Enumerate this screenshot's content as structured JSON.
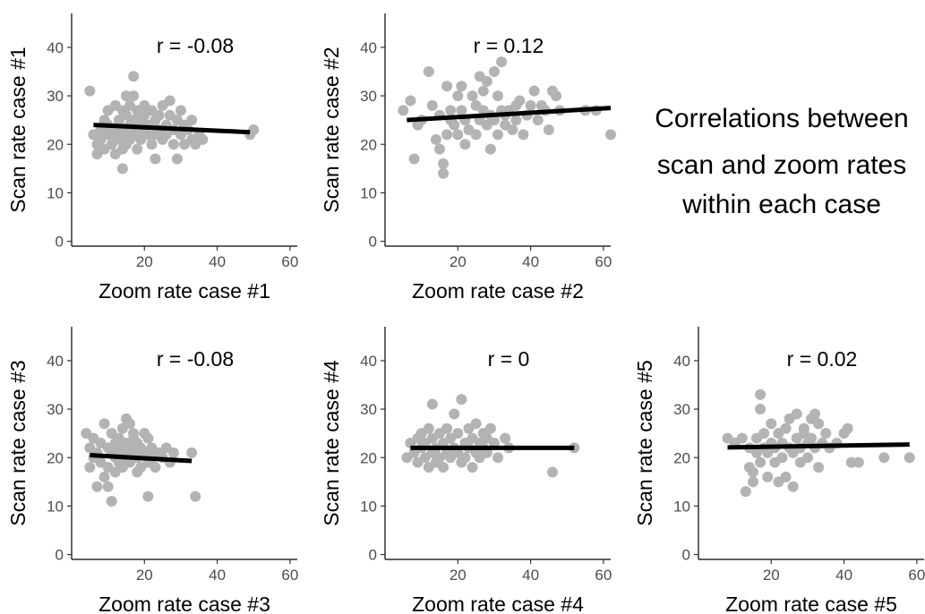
{
  "caption": [
    "Correlations between",
    "scan and zoom rates",
    "within each case"
  ],
  "axes": {
    "xlim": [
      0,
      62
    ],
    "ylim": [
      -1,
      47
    ],
    "xticks": [
      20,
      40,
      60
    ],
    "yticks": [
      0,
      10,
      20,
      30,
      40
    ]
  },
  "colors": {
    "points": "#b3b3b3",
    "fit": "#000000",
    "axis": "#000000"
  },
  "chart_data": [
    {
      "type": "scatter",
      "xlabel": "Zoom rate case #1",
      "ylabel": "Scan rate case #1",
      "annotation": "r = -0.08",
      "fit": {
        "x": [
          6,
          49
        ],
        "y": [
          24.0,
          22.5
        ]
      },
      "points": [
        [
          5,
          31
        ],
        [
          6,
          22
        ],
        [
          7,
          20
        ],
        [
          7,
          18
        ],
        [
          8,
          23
        ],
        [
          8,
          21
        ],
        [
          9,
          25
        ],
        [
          9,
          19
        ],
        [
          10,
          22
        ],
        [
          10,
          27
        ],
        [
          10,
          24
        ],
        [
          11,
          20
        ],
        [
          11,
          23
        ],
        [
          12,
          28
        ],
        [
          12,
          22
        ],
        [
          12,
          18
        ],
        [
          13,
          25
        ],
        [
          13,
          21
        ],
        [
          13,
          24
        ],
        [
          14,
          19
        ],
        [
          14,
          27
        ],
        [
          14,
          23
        ],
        [
          14,
          15
        ],
        [
          15,
          30
        ],
        [
          15,
          22
        ],
        [
          15,
          26
        ],
        [
          15,
          20
        ],
        [
          16,
          24
        ],
        [
          16,
          28
        ],
        [
          16,
          21
        ],
        [
          17,
          34
        ],
        [
          17,
          25
        ],
        [
          17,
          22
        ],
        [
          17,
          30
        ],
        [
          18,
          23
        ],
        [
          18,
          27
        ],
        [
          18,
          19
        ],
        [
          19,
          25
        ],
        [
          19,
          21
        ],
        [
          20,
          26
        ],
        [
          20,
          23
        ],
        [
          20,
          28
        ],
        [
          21,
          22
        ],
        [
          21,
          24
        ],
        [
          22,
          27
        ],
        [
          22,
          20
        ],
        [
          23,
          25
        ],
        [
          23,
          22
        ],
        [
          23,
          17
        ],
        [
          24,
          26
        ],
        [
          24,
          23
        ],
        [
          25,
          28
        ],
        [
          25,
          21
        ],
        [
          26,
          24
        ],
        [
          26,
          22
        ],
        [
          27,
          29
        ],
        [
          27,
          26
        ],
        [
          28,
          23
        ],
        [
          28,
          20
        ],
        [
          29,
          25
        ],
        [
          29,
          17
        ],
        [
          30,
          27
        ],
        [
          30,
          22
        ],
        [
          31,
          24
        ],
        [
          31,
          20
        ],
        [
          32,
          23
        ],
        [
          33,
          21
        ],
        [
          33,
          25
        ],
        [
          34,
          20
        ],
        [
          35,
          22
        ],
        [
          36,
          21
        ],
        [
          49,
          22
        ],
        [
          50,
          23
        ]
      ]
    },
    {
      "type": "scatter",
      "xlabel": "Zoom rate case #2",
      "ylabel": "Scan rate case #2",
      "annotation": "r = 0.12",
      "fit": {
        "x": [
          6,
          62
        ],
        "y": [
          25.0,
          27.5
        ]
      },
      "points": [
        [
          5,
          27
        ],
        [
          7,
          29
        ],
        [
          8,
          17
        ],
        [
          9,
          24
        ],
        [
          10,
          25
        ],
        [
          12,
          35
        ],
        [
          13,
          28
        ],
        [
          14,
          21
        ],
        [
          15,
          26
        ],
        [
          15,
          19
        ],
        [
          16,
          16
        ],
        [
          16,
          14
        ],
        [
          17,
          22
        ],
        [
          17,
          32
        ],
        [
          18,
          27
        ],
        [
          18,
          25
        ],
        [
          19,
          24
        ],
        [
          20,
          30
        ],
        [
          20,
          22
        ],
        [
          21,
          32
        ],
        [
          21,
          27
        ],
        [
          22,
          20
        ],
        [
          22,
          25
        ],
        [
          23,
          23
        ],
        [
          24,
          30
        ],
        [
          25,
          28
        ],
        [
          25,
          22
        ],
        [
          26,
          34
        ],
        [
          26,
          25
        ],
        [
          27,
          27
        ],
        [
          27,
          31
        ],
        [
          28,
          33
        ],
        [
          28,
          24
        ],
        [
          29,
          26
        ],
        [
          29,
          19
        ],
        [
          30,
          35
        ],
        [
          30,
          25
        ],
        [
          31,
          30
        ],
        [
          31,
          22
        ],
        [
          32,
          37
        ],
        [
          32,
          27
        ],
        [
          33,
          24
        ],
        [
          33,
          26
        ],
        [
          34,
          27
        ],
        [
          35,
          23
        ],
        [
          36,
          25
        ],
        [
          36,
          28
        ],
        [
          37,
          29
        ],
        [
          38,
          22
        ],
        [
          39,
          26
        ],
        [
          40,
          28
        ],
        [
          41,
          31
        ],
        [
          42,
          25
        ],
        [
          43,
          28
        ],
        [
          44,
          27
        ],
        [
          45,
          23
        ],
        [
          46,
          31
        ],
        [
          47,
          30
        ],
        [
          48,
          27
        ],
        [
          55,
          27
        ],
        [
          58,
          27
        ],
        [
          62,
          22
        ]
      ]
    },
    {
      "type": "scatter",
      "xlabel": "Zoom rate case #3",
      "ylabel": "Scan rate case #3",
      "annotation": "r = -0.08",
      "fit": {
        "x": [
          5,
          33
        ],
        "y": [
          20.5,
          19.3
        ]
      },
      "points": [
        [
          4,
          25
        ],
        [
          5,
          22
        ],
        [
          5,
          18
        ],
        [
          6,
          20
        ],
        [
          6,
          24
        ],
        [
          7,
          14
        ],
        [
          7,
          21
        ],
        [
          8,
          23
        ],
        [
          8,
          19
        ],
        [
          9,
          27
        ],
        [
          9,
          16
        ],
        [
          10,
          22
        ],
        [
          10,
          18
        ],
        [
          10,
          14
        ],
        [
          11,
          21
        ],
        [
          11,
          25
        ],
        [
          11,
          11
        ],
        [
          12,
          20
        ],
        [
          12,
          23
        ],
        [
          12,
          17
        ],
        [
          13,
          24
        ],
        [
          13,
          19
        ],
        [
          13,
          22
        ],
        [
          14,
          21
        ],
        [
          14,
          26
        ],
        [
          14,
          18
        ],
        [
          15,
          28
        ],
        [
          15,
          20
        ],
        [
          15,
          23
        ],
        [
          16,
          27
        ],
        [
          16,
          22
        ],
        [
          16,
          19
        ],
        [
          17,
          25
        ],
        [
          17,
          21
        ],
        [
          17,
          24
        ],
        [
          18,
          20
        ],
        [
          18,
          23
        ],
        [
          18,
          17
        ],
        [
          19,
          22
        ],
        [
          19,
          18
        ],
        [
          20,
          25
        ],
        [
          20,
          21
        ],
        [
          21,
          24
        ],
        [
          21,
          19
        ],
        [
          21,
          12
        ],
        [
          22,
          22
        ],
        [
          22,
          20
        ],
        [
          23,
          18
        ],
        [
          24,
          21
        ],
        [
          25,
          20
        ],
        [
          26,
          22
        ],
        [
          27,
          19
        ],
        [
          28,
          21
        ],
        [
          33,
          21
        ],
        [
          34,
          12
        ]
      ]
    },
    {
      "type": "scatter",
      "xlabel": "Zoom rate case #4",
      "ylabel": "Scan rate case #4",
      "annotation": "r = 0",
      "fit": {
        "x": [
          7,
          52
        ],
        "y": [
          22.0,
          22.0
        ]
      },
      "points": [
        [
          6,
          20
        ],
        [
          7,
          23
        ],
        [
          8,
          21
        ],
        [
          9,
          24
        ],
        [
          9,
          19
        ],
        [
          10,
          22
        ],
        [
          10,
          25
        ],
        [
          11,
          20
        ],
        [
          11,
          23
        ],
        [
          12,
          18
        ],
        [
          12,
          26
        ],
        [
          13,
          21
        ],
        [
          13,
          24
        ],
        [
          13,
          31
        ],
        [
          14,
          19
        ],
        [
          14,
          22
        ],
        [
          15,
          25
        ],
        [
          15,
          20
        ],
        [
          16,
          23
        ],
        [
          16,
          18
        ],
        [
          17,
          21
        ],
        [
          17,
          26
        ],
        [
          18,
          20
        ],
        [
          18,
          24
        ],
        [
          19,
          22
        ],
        [
          19,
          29
        ],
        [
          20,
          21
        ],
        [
          20,
          25
        ],
        [
          21,
          19
        ],
        [
          21,
          32
        ],
        [
          22,
          23
        ],
        [
          22,
          20
        ],
        [
          23,
          26
        ],
        [
          23,
          22
        ],
        [
          24,
          18
        ],
        [
          24,
          24
        ],
        [
          25,
          21
        ],
        [
          25,
          27
        ],
        [
          26,
          23
        ],
        [
          26,
          20
        ],
        [
          27,
          25
        ],
        [
          27,
          22
        ],
        [
          28,
          21
        ],
        [
          28,
          24
        ],
        [
          29,
          26
        ],
        [
          30,
          23
        ],
        [
          31,
          20
        ],
        [
          33,
          24
        ],
        [
          34,
          22
        ],
        [
          46,
          17
        ],
        [
          52,
          22
        ]
      ]
    },
    {
      "type": "scatter",
      "xlabel": "Zoom rate case #5",
      "ylabel": "Scan rate case #5",
      "annotation": "r = 0.02",
      "fit": {
        "x": [
          8,
          58
        ],
        "y": [
          22.1,
          22.7
        ]
      },
      "points": [
        [
          8,
          24
        ],
        [
          10,
          23
        ],
        [
          12,
          24
        ],
        [
          13,
          13
        ],
        [
          14,
          18
        ],
        [
          14,
          22
        ],
        [
          15,
          17
        ],
        [
          15,
          15
        ],
        [
          16,
          21
        ],
        [
          16,
          24
        ],
        [
          17,
          33
        ],
        [
          17,
          30
        ],
        [
          17,
          19
        ],
        [
          18,
          22
        ],
        [
          18,
          25
        ],
        [
          19,
          21
        ],
        [
          19,
          16
        ],
        [
          20,
          23
        ],
        [
          20,
          27
        ],
        [
          21,
          22
        ],
        [
          21,
          19
        ],
        [
          22,
          25
        ],
        [
          22,
          15
        ],
        [
          23,
          23
        ],
        [
          23,
          20
        ],
        [
          24,
          26
        ],
        [
          24,
          16
        ],
        [
          25,
          22
        ],
        [
          25,
          28
        ],
        [
          26,
          21
        ],
        [
          26,
          14
        ],
        [
          27,
          24
        ],
        [
          27,
          29
        ],
        [
          28,
          22
        ],
        [
          28,
          19
        ],
        [
          29,
          26
        ],
        [
          29,
          25
        ],
        [
          30,
          23
        ],
        [
          30,
          20
        ],
        [
          31,
          28
        ],
        [
          31,
          24
        ],
        [
          32,
          29
        ],
        [
          32,
          22
        ],
        [
          33,
          27
        ],
        [
          33,
          18
        ],
        [
          34,
          23
        ],
        [
          35,
          25
        ],
        [
          36,
          22
        ],
        [
          38,
          23
        ],
        [
          40,
          25
        ],
        [
          41,
          26
        ],
        [
          42,
          19
        ],
        [
          44,
          19
        ],
        [
          51,
          20
        ],
        [
          58,
          20
        ]
      ]
    }
  ]
}
